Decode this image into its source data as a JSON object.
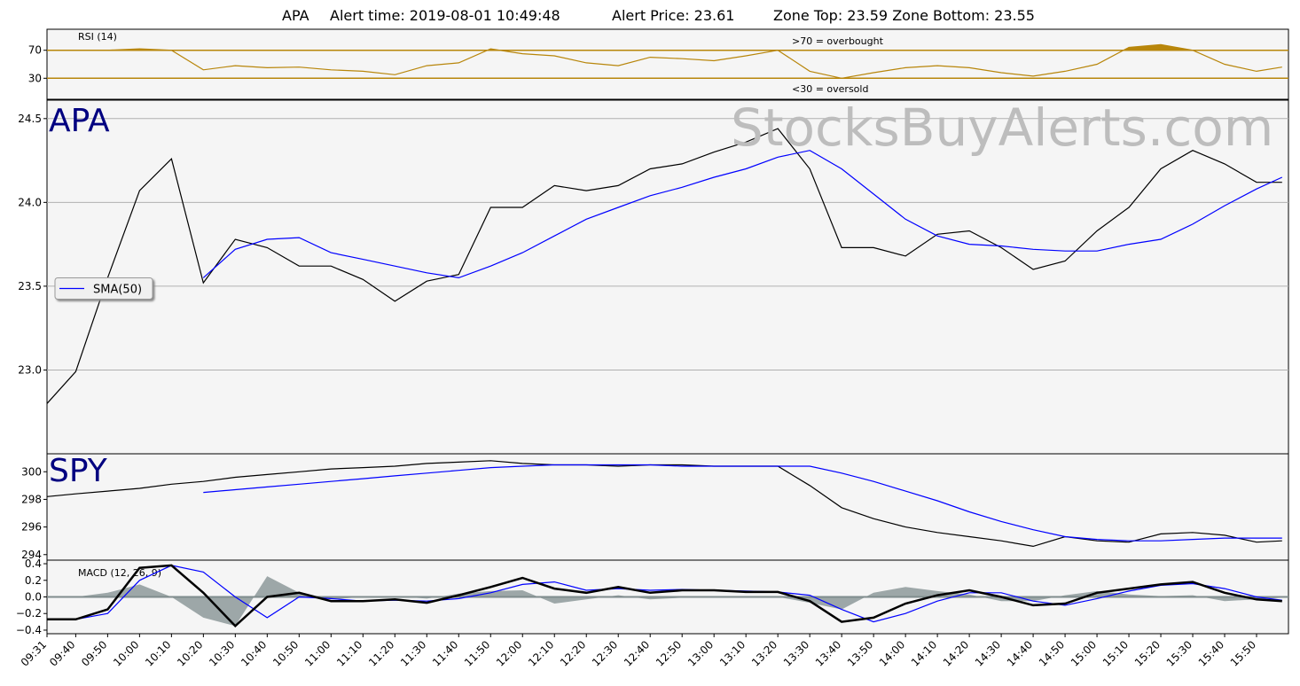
{
  "title": {
    "symbol": "APA",
    "alert_time": "Alert time: 2019-08-01 10:49:48",
    "alert_price": "Alert Price: 23.61",
    "zone": "Zone Top: 23.59  Zone Bottom: 23.55"
  },
  "watermark": "StocksBuyAlerts.com",
  "x_axis": {
    "x": [
      "09:31",
      "09:40",
      "09:50",
      "10:00",
      "10:10",
      "10:20",
      "10:30",
      "10:40",
      "10:50",
      "11:00",
      "11:10",
      "11:20",
      "11:30",
      "11:40",
      "11:50",
      "12:00",
      "12:10",
      "12:20",
      "12:30",
      "12:40",
      "12:50",
      "13:00",
      "13:10",
      "13:20",
      "13:30",
      "13:40",
      "13:50",
      "14:00",
      "14:10",
      "14:20",
      "14:30",
      "14:40",
      "14:50",
      "15:00",
      "15:10",
      "15:20",
      "15:30",
      "15:40",
      "15:50",
      "15:58"
    ],
    "xticks": [
      "09:31",
      "09:40",
      "09:50",
      "10:00",
      "10:10",
      "10:20",
      "10:30",
      "10:40",
      "10:50",
      "11:00",
      "11:10",
      "11:20",
      "11:30",
      "11:40",
      "11:50",
      "12:00",
      "12:10",
      "12:20",
      "12:30",
      "12:40",
      "12:50",
      "13:00",
      "13:10",
      "13:20",
      "13:30",
      "13:40",
      "13:50",
      "14:00",
      "14:10",
      "14:20",
      "14:30",
      "14:40",
      "14:50",
      "15:00",
      "15:10",
      "15:20",
      "15:30",
      "15:40",
      "15:50"
    ],
    "xlim": [
      "09:31",
      "16:00"
    ]
  },
  "chart_data": [
    {
      "type": "line",
      "label": "RSI (14)",
      "annotations": [
        ">70 = overbought",
        "<30 = oversold"
      ],
      "ylim": [
        0,
        100
      ],
      "yticks": [
        30,
        70
      ],
      "level_color": "#b8860b",
      "series": [
        {
          "color": "#b8860b",
          "values": [
            70,
            70,
            70,
            72,
            70,
            42,
            48,
            45,
            46,
            42,
            40,
            35,
            48,
            52,
            72,
            65,
            62,
            52,
            48,
            60,
            58,
            55,
            62,
            70,
            40,
            30,
            38,
            45,
            48,
            45,
            38,
            33,
            40,
            50,
            74,
            78,
            70,
            50,
            40,
            46
          ]
        }
      ]
    },
    {
      "type": "line",
      "label": "APA",
      "ylim": [
        22.5,
        24.61
      ],
      "grid": true,
      "legend": "center left",
      "yticks": [
        {
          "value": 23,
          "label": "23.0"
        },
        {
          "value": 23.5,
          "label": "23.5"
        },
        {
          "value": 24,
          "label": "24.0"
        },
        {
          "value": 24.5,
          "label": "24.5"
        }
      ],
      "series": [
        {
          "color": "#000000",
          "values": [
            22.8,
            22.99,
            23.55,
            24.07,
            24.26,
            23.52,
            23.78,
            23.73,
            23.62,
            23.62,
            23.54,
            23.41,
            23.53,
            23.57,
            23.97,
            23.97,
            24.1,
            24.07,
            24.1,
            24.2,
            24.23,
            24.3,
            24.36,
            24.44,
            24.2,
            23.73,
            23.73,
            23.68,
            23.81,
            23.83,
            23.73,
            23.6,
            23.65,
            23.83,
            23.97,
            24.2,
            24.31,
            24.23,
            24.12,
            24.12
          ]
        },
        {
          "name": "SMA(50)",
          "color": "#0000ff",
          "values": [
            null,
            null,
            null,
            null,
            null,
            23.55,
            23.72,
            23.78,
            23.79,
            23.7,
            23.66,
            23.62,
            23.58,
            23.55,
            23.62,
            23.7,
            23.8,
            23.9,
            23.97,
            24.04,
            24.09,
            24.15,
            24.2,
            24.27,
            24.31,
            24.2,
            24.05,
            23.9,
            23.8,
            23.75,
            23.74,
            23.72,
            23.71,
            23.71,
            23.75,
            23.78,
            23.87,
            23.98,
            24.08,
            24.15
          ]
        }
      ]
    },
    {
      "type": "line",
      "label": "SPY",
      "ylim": [
        293.6,
        301.3
      ],
      "yticks": [
        294,
        296,
        298,
        300
      ],
      "series": [
        {
          "color": "#000000",
          "values": [
            298.2,
            298.4,
            298.6,
            298.8,
            299.1,
            299.3,
            299.6,
            299.8,
            300.0,
            300.2,
            300.3,
            300.4,
            300.6,
            300.7,
            300.8,
            300.6,
            300.5,
            300.5,
            300.4,
            300.5,
            300.5,
            300.4,
            300.4,
            300.4,
            299.0,
            297.4,
            296.6,
            296.0,
            295.6,
            295.3,
            295.0,
            294.6,
            295.3,
            295.0,
            294.9,
            295.5,
            295.6,
            295.4,
            294.9,
            295.0
          ]
        },
        {
          "color": "#0000ff",
          "values": [
            null,
            null,
            null,
            null,
            null,
            298.5,
            298.7,
            298.9,
            299.1,
            299.3,
            299.5,
            299.7,
            299.9,
            300.1,
            300.3,
            300.4,
            300.5,
            300.5,
            300.5,
            300.5,
            300.4,
            300.4,
            300.4,
            300.4,
            300.4,
            299.9,
            299.3,
            298.6,
            297.9,
            297.1,
            296.4,
            295.8,
            295.3,
            295.1,
            295.0,
            295.0,
            295.1,
            295.2,
            295.2,
            295.2
          ]
        }
      ]
    },
    {
      "type": "line",
      "label": "MACD (12, 26, 9)",
      "ylim": [
        -0.443,
        0.443
      ],
      "yticks": [
        {
          "value": -0.4,
          "label": "−0.4"
        },
        {
          "value": -0.2,
          "label": "−0.2"
        },
        {
          "value": 0,
          "label": "0.0"
        },
        0.2,
        0.4
      ],
      "series": [
        {
          "kind": "area",
          "color": "#7f8c8d",
          "values": [
            0,
            0,
            0.05,
            0.15,
            0,
            -0.25,
            -0.35,
            0.25,
            0.05,
            -0.03,
            0,
            0.01,
            -0.02,
            0.04,
            0.07,
            0.08,
            -0.08,
            -0.03,
            0.02,
            -0.03,
            -0.01,
            0,
            -0.01,
            0,
            -0.07,
            -0.15,
            0.05,
            0.12,
            0.07,
            0.03,
            -0.05,
            -0.05,
            0.02,
            0.07,
            0.03,
            0.01,
            0.02,
            -0.05,
            -0.03,
            -0.01
          ]
        },
        {
          "color": "#0000ff",
          "values": [
            -0.27,
            -0.27,
            -0.2,
            0.2,
            0.38,
            0.3,
            0.0,
            -0.25,
            0.0,
            -0.02,
            -0.05,
            -0.04,
            -0.05,
            -0.02,
            0.05,
            0.15,
            0.18,
            0.08,
            0.1,
            0.08,
            0.09,
            0.08,
            0.07,
            0.06,
            0.02,
            -0.15,
            -0.3,
            -0.2,
            -0.05,
            0.05,
            0.05,
            -0.05,
            -0.1,
            -0.02,
            0.07,
            0.14,
            0.16,
            0.1,
            0.0,
            -0.04
          ]
        },
        {
          "color": "#000000",
          "width": 2.5,
          "values": [
            -0.27,
            -0.27,
            -0.15,
            0.35,
            0.38,
            0.05,
            -0.35,
            0.0,
            0.05,
            -0.05,
            -0.05,
            -0.03,
            -0.07,
            0.02,
            0.12,
            0.23,
            0.1,
            0.05,
            0.12,
            0.05,
            0.08,
            0.08,
            0.06,
            0.06,
            -0.05,
            -0.3,
            -0.25,
            -0.08,
            0.02,
            0.08,
            0.0,
            -0.1,
            -0.08,
            0.05,
            0.1,
            0.15,
            0.18,
            0.05,
            -0.03,
            -0.05
          ]
        }
      ]
    }
  ]
}
